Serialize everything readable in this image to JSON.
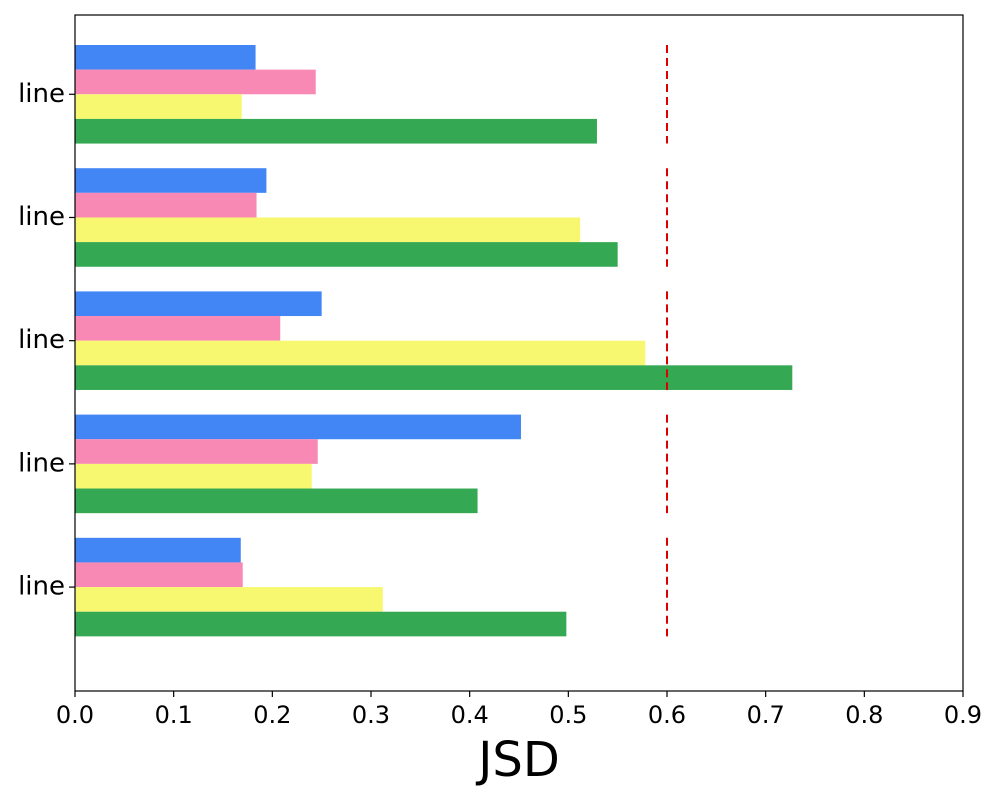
{
  "chart_data": {
    "type": "bar",
    "orientation": "horizontal",
    "xlabel": "JSD",
    "ylabel": "",
    "title": "",
    "xlim": [
      0.0,
      0.9
    ],
    "xticks": [
      "0.0",
      "0.1",
      "0.2",
      "0.3",
      "0.4",
      "0.5",
      "0.6",
      "0.7",
      "0.8",
      "0.9"
    ],
    "categories": [
      "line",
      "line",
      "line",
      "line",
      "line"
    ],
    "series": [
      {
        "color": "#4285f4",
        "values": [
          0.183,
          0.194,
          0.25,
          0.452,
          0.168
        ]
      },
      {
        "color": "#f888b4",
        "values": [
          0.244,
          0.184,
          0.208,
          0.246,
          0.17
        ]
      },
      {
        "color": "#f7f86f",
        "values": [
          0.169,
          0.512,
          0.578,
          0.24,
          0.312
        ]
      },
      {
        "color": "#34a853",
        "values": [
          0.529,
          0.55,
          0.727,
          0.408,
          0.498
        ]
      }
    ],
    "reference_lines": [
      {
        "value": 0.6,
        "color": "#dd0000",
        "style": "dashed"
      }
    ],
    "grid": false
  }
}
